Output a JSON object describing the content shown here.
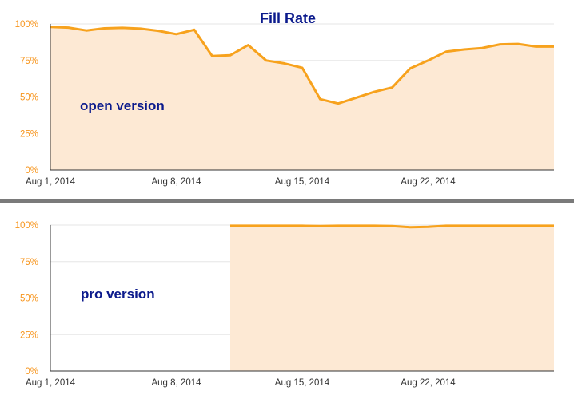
{
  "colors": {
    "line": "#f7a21d",
    "fill": "#fde9d4",
    "title": "#0b1a8c",
    "panel_label": "#0b1a8c",
    "ytick": "#f7951d",
    "xtick": "#333333",
    "grid": "#e6e6e6",
    "axis": "#333333",
    "separator": "#7a7a7a"
  },
  "chart_data": [
    {
      "type": "area",
      "title": "Fill Rate",
      "panel_label": "open version",
      "xlabel": "",
      "ylabel": "",
      "x_ticks": [
        "Aug 1, 2014",
        "Aug 8, 2014",
        "Aug 15, 2014",
        "Aug 22, 2014"
      ],
      "y_ticks": [
        "0%",
        "25%",
        "50%",
        "75%",
        "100%"
      ],
      "ylim": [
        0,
        100
      ],
      "xlim": [
        "2014-08-01",
        "2014-08-29"
      ],
      "grid": true,
      "series": [
        {
          "x": [
            "2014-08-01",
            "2014-08-02",
            "2014-08-03",
            "2014-08-04",
            "2014-08-05",
            "2014-08-06",
            "2014-08-07",
            "2014-08-08",
            "2014-08-09",
            "2014-08-10",
            "2014-08-11",
            "2014-08-12",
            "2014-08-13",
            "2014-08-14",
            "2014-08-15",
            "2014-08-16",
            "2014-08-17",
            "2014-08-18",
            "2014-08-19",
            "2014-08-20",
            "2014-08-21",
            "2014-08-22",
            "2014-08-23",
            "2014-08-24",
            "2014-08-25",
            "2014-08-26",
            "2014-08-27",
            "2014-08-28"
          ],
          "values": [
            98,
            97.5,
            95.5,
            97,
            97.3,
            96.8,
            95.3,
            93,
            96,
            78,
            78.5,
            85.5,
            75,
            73,
            70,
            48.5,
            45.5,
            49.5,
            53.5,
            56.5,
            69.5,
            75,
            81,
            82.5,
            83.5,
            86,
            86.3,
            84.5
          ]
        }
      ]
    },
    {
      "type": "area",
      "title": "",
      "panel_label": "pro version",
      "xlabel": "",
      "ylabel": "",
      "x_ticks": [
        "Aug 1, 2014",
        "Aug 8, 2014",
        "Aug 15, 2014",
        "Aug 22, 2014"
      ],
      "y_ticks": [
        "0%",
        "25%",
        "50%",
        "75%",
        "100%"
      ],
      "ylim": [
        0,
        100
      ],
      "xlim": [
        "2014-08-01",
        "2014-08-29"
      ],
      "grid": true,
      "series": [
        {
          "x": [
            "2014-08-11",
            "2014-08-12",
            "2014-08-13",
            "2014-08-14",
            "2014-08-15",
            "2014-08-16",
            "2014-08-17",
            "2014-08-18",
            "2014-08-19",
            "2014-08-20",
            "2014-08-21",
            "2014-08-22",
            "2014-08-23",
            "2014-08-24",
            "2014-08-25",
            "2014-08-26",
            "2014-08-27",
            "2014-08-28"
          ],
          "values": [
            99.5,
            99.5,
            99.5,
            99.5,
            99.5,
            99.3,
            99.5,
            99.5,
            99.5,
            99.3,
            98.5,
            98.8,
            99.5,
            99.5,
            99.5,
            99.5,
            99.5,
            99.5
          ]
        }
      ]
    }
  ]
}
